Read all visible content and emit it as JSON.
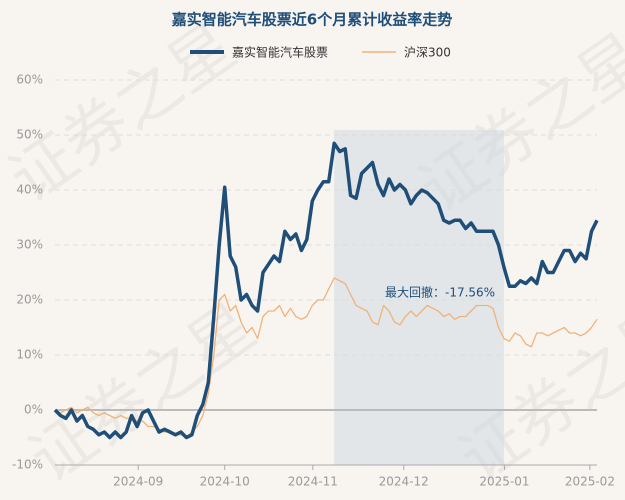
{
  "chart_data": {
    "type": "line",
    "title": "嘉实智能汽车股票近6个月累计收益率走势",
    "watermark": "证券之星",
    "annotation": "最大回撤：-17.56%",
    "x": [
      0,
      1,
      2,
      3,
      4,
      5,
      6,
      7,
      8,
      9,
      10,
      11,
      12,
      13,
      14,
      15,
      16,
      17,
      18,
      19,
      20,
      21,
      22,
      23,
      24,
      25,
      26,
      27,
      28,
      29,
      30,
      31,
      32,
      33,
      34,
      35,
      36,
      37,
      38,
      39,
      40,
      41,
      42,
      43,
      44,
      45,
      46,
      47,
      48,
      49,
      50,
      51,
      52,
      53,
      54,
      55,
      56,
      57,
      58,
      59,
      60,
      61,
      62,
      63,
      64,
      65,
      66,
      67,
      68,
      69,
      70,
      71,
      72,
      73,
      74,
      75,
      76,
      77,
      78,
      79,
      80,
      81,
      82,
      83,
      84,
      85,
      86,
      87,
      88,
      89,
      90,
      91,
      92,
      93,
      94,
      95,
      96,
      97,
      98,
      99
    ],
    "xlim": [
      0,
      99
    ],
    "xticks": [
      {
        "value": 15.2,
        "label": "2024-09"
      },
      {
        "value": 31,
        "label": "2024-10"
      },
      {
        "value": 47.1,
        "label": "2024-11"
      },
      {
        "value": 63.7,
        "label": "2024-12"
      },
      {
        "value": 82.1,
        "label": "2025-01"
      },
      {
        "value": 97.7,
        "label": "2025-02"
      }
    ],
    "ylim": [
      -10,
      60
    ],
    "yticks": [
      {
        "value": -10,
        "label": "-10%"
      },
      {
        "value": 0,
        "label": "0%"
      },
      {
        "value": 10,
        "label": "10%"
      },
      {
        "value": 20,
        "label": "20%"
      },
      {
        "value": 30,
        "label": "30%"
      },
      {
        "value": 40,
        "label": "40%"
      },
      {
        "value": 50,
        "label": "50%"
      },
      {
        "value": 60,
        "label": "60%"
      }
    ],
    "grid": true,
    "drawdown_range": [
      51,
      82
    ],
    "series": [
      {
        "name": "嘉实智能汽车股票",
        "color": "#1f4e79",
        "values": [
          0,
          -1,
          -1.5,
          0,
          -2,
          -1,
          -3,
          -3.5,
          -4.5,
          -4,
          -5,
          -4,
          -5,
          -4,
          -1,
          -3,
          -0.5,
          0,
          -2,
          -4,
          -3.5,
          -4,
          -4.5,
          -4,
          -5,
          -4.5,
          -1,
          1,
          5,
          17,
          30,
          40.5,
          28,
          26,
          20,
          21,
          19,
          18,
          25,
          26.5,
          28,
          27,
          32.5,
          31,
          32,
          29,
          31,
          38,
          40,
          41.5,
          41.5,
          48.5,
          47,
          47.5,
          39,
          38.5,
          43,
          44,
          45,
          41,
          39,
          42,
          40,
          41,
          40,
          37.5,
          39,
          40,
          39.5,
          38.5,
          37.5,
          34.5,
          34,
          34.5,
          34.5,
          33,
          34,
          32.5,
          32.5,
          32.5,
          32.5,
          30,
          26,
          22.5,
          22.5,
          23.5,
          23,
          24,
          23,
          27,
          25,
          25,
          27,
          29,
          29,
          27,
          28.5,
          27.5,
          32.5,
          34.5
        ]
      },
      {
        "name": "沪深300",
        "color": "#f0b27a",
        "values": [
          0,
          -0.5,
          0,
          0.5,
          -0.5,
          0,
          0.5,
          -0.5,
          -1,
          -0.5,
          -1,
          -1.5,
          -1,
          -1.5,
          -1.5,
          -2,
          -2,
          -3,
          -3,
          -3.5,
          -4,
          -4,
          -4.5,
          -4.5,
          -5,
          -4,
          -3,
          -1,
          3,
          10,
          20,
          21,
          18,
          19,
          16,
          14,
          15,
          13,
          17,
          18,
          18,
          19,
          17,
          18.5,
          17,
          16.5,
          17,
          19,
          20,
          20,
          22,
          24,
          23.5,
          23,
          21,
          19,
          18.5,
          18,
          16,
          15.5,
          19,
          18,
          16,
          15.5,
          17,
          18,
          17,
          18,
          19,
          18.5,
          18,
          17,
          17.5,
          16.5,
          17,
          17,
          18,
          19,
          19,
          19,
          18.5,
          15,
          13,
          12.5,
          14,
          13.5,
          12,
          11.5,
          14,
          14,
          13.5,
          14,
          14.5,
          15,
          14,
          14,
          13.5,
          14,
          15,
          16.5
        ]
      }
    ]
  }
}
